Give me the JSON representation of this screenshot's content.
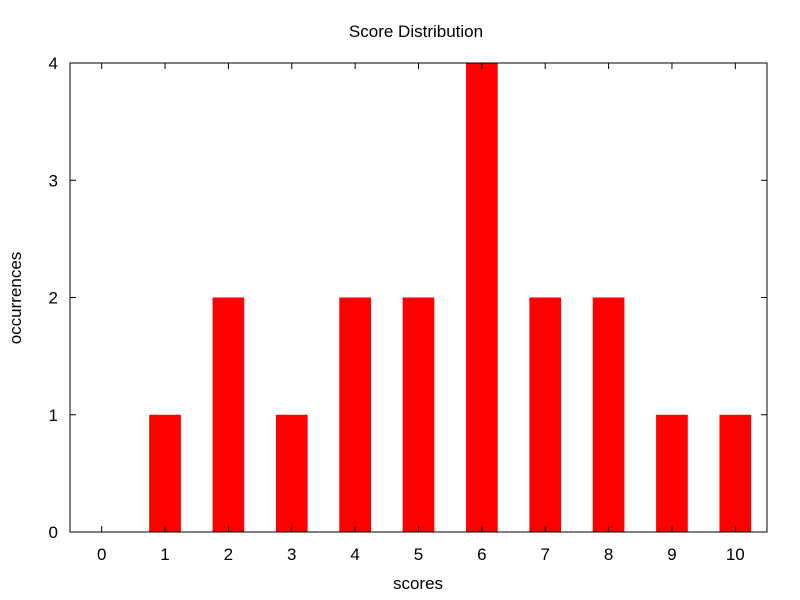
{
  "chart_data": {
    "type": "bar",
    "title": "Score Distribution",
    "xlabel": "scores",
    "ylabel": "occurrences",
    "categories": [
      "0",
      "1",
      "2",
      "3",
      "4",
      "5",
      "6",
      "7",
      "8",
      "9",
      "10"
    ],
    "values": [
      0,
      1,
      2,
      1,
      2,
      2,
      4,
      2,
      2,
      1,
      1
    ],
    "yticks": [
      "0",
      "1",
      "2",
      "3",
      "4"
    ],
    "ylim": [
      0,
      4
    ],
    "xlim": [
      -0.5,
      10.5
    ],
    "bar_color": "#ff0000",
    "grid": false,
    "legend": "none"
  }
}
